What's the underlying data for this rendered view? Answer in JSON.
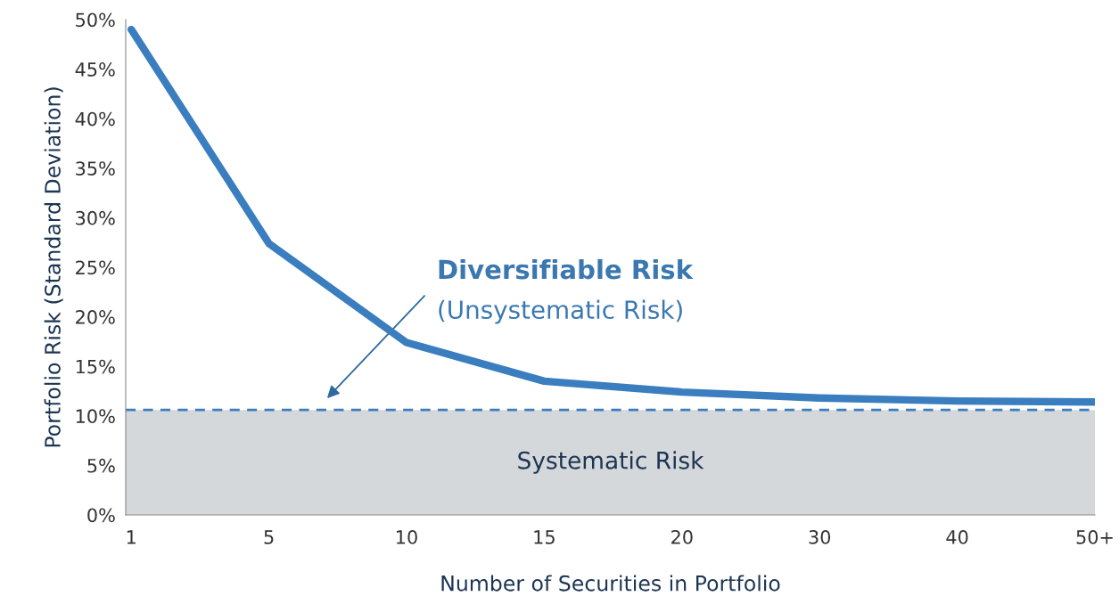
{
  "chart_data": {
    "type": "line",
    "xlabel": "Number of Securities in Portfolio",
    "ylabel": "Portfolio Risk (Standard Deviation)",
    "categories": [
      "1",
      "5",
      "10",
      "15",
      "20",
      "30",
      "40",
      "50+"
    ],
    "series": [
      {
        "color": "#3a7ebf",
        "values": [
          49,
          27.4,
          17.4,
          13.5,
          12.4,
          11.8,
          11.5,
          11.4
        ]
      }
    ],
    "ylim": [
      0,
      50
    ],
    "yticks": [
      {
        "value": 0,
        "label": "0%"
      },
      {
        "value": 5,
        "label": "5%"
      },
      {
        "value": 10,
        "label": "10%"
      },
      {
        "value": 15,
        "label": "15%"
      },
      {
        "value": 20,
        "label": "20%"
      },
      {
        "value": 25,
        "label": "25%"
      },
      {
        "value": 30,
        "label": "30%"
      },
      {
        "value": 35,
        "label": "35%"
      },
      {
        "value": 40,
        "label": "40%"
      },
      {
        "value": 45,
        "label": "45%"
      },
      {
        "value": 50,
        "label": "50%"
      }
    ],
    "ref_lines": [
      {
        "axis": "y",
        "value": 10.6,
        "color": "#3a7ebf",
        "line_style": "dashed"
      }
    ],
    "bands": [
      {
        "axis": "y",
        "from": 0,
        "to": 10.6,
        "label": "Systematic Risk",
        "color": "#d5d8db"
      }
    ],
    "annotations": [
      "Diversifiable Risk",
      "(Unsystematic Risk)"
    ],
    "grid": false,
    "legend": false,
    "marker": "none",
    "line_style": "solid"
  }
}
